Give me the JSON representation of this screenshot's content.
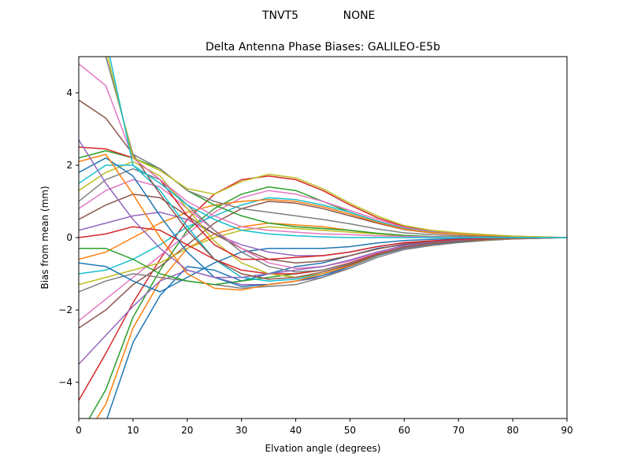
{
  "chart_data": {
    "type": "line",
    "suptitle_left": "TNVT5",
    "suptitle_right": "NONE",
    "title": "Delta Antenna Phase Biases: GALILEO-E5b",
    "xlabel": "Elvation angle (degrees)",
    "ylabel": "Bias from mean (mm)",
    "xlim": [
      0,
      90
    ],
    "ylim": [
      -5,
      5
    ],
    "xticks": [
      0,
      10,
      20,
      30,
      40,
      50,
      60,
      70,
      80,
      90
    ],
    "yticks": [
      -4,
      -2,
      0,
      2,
      4
    ],
    "grid": false,
    "legend": "none",
    "x": [
      0,
      5,
      10,
      15,
      20,
      25,
      30,
      35,
      40,
      45,
      50,
      55,
      60,
      65,
      70,
      75,
      80,
      85,
      90
    ],
    "palette": [
      "#1f77b4",
      "#ff7f0e",
      "#2ca02c",
      "#d62728",
      "#9467bd",
      "#8c564b",
      "#e377c2",
      "#7f7f7f",
      "#bcbd22",
      "#17becf"
    ],
    "series": [
      {
        "values": [
          -6.2,
          -5.1,
          -2.9,
          -1.6,
          -0.8,
          -0.9,
          -1.2,
          -1.0,
          -0.8,
          -0.7,
          -0.5,
          -0.3,
          -0.2,
          -0.15,
          -0.1,
          -0.06,
          -0.03,
          -0.01,
          0
        ]
      },
      {
        "values": [
          -5.8,
          -4.6,
          -2.5,
          -1.2,
          -0.3,
          0.1,
          0.3,
          0.4,
          0.35,
          0.3,
          0.2,
          0.1,
          0.05,
          0.02,
          0.01,
          0.0,
          0.0,
          0.0,
          0
        ]
      },
      {
        "values": [
          -5.5,
          -4.2,
          -2.2,
          -0.9,
          0.2,
          0.8,
          1.2,
          1.4,
          1.3,
          1.0,
          0.7,
          0.45,
          0.25,
          0.15,
          0.1,
          0.06,
          0.03,
          0.01,
          0
        ]
      },
      {
        "values": [
          -4.5,
          -3.2,
          -1.8,
          -0.6,
          0.5,
          1.2,
          1.6,
          1.7,
          1.6,
          1.3,
          0.9,
          0.55,
          0.3,
          0.18,
          0.12,
          0.08,
          0.04,
          0.02,
          0
        ]
      },
      {
        "values": [
          -3.5,
          -2.7,
          -1.9,
          -1.2,
          -0.9,
          -1.1,
          -1.3,
          -1.3,
          -1.2,
          -1.1,
          -0.8,
          -0.5,
          -0.3,
          -0.2,
          -0.12,
          -0.07,
          -0.04,
          -0.02,
          0
        ]
      },
      {
        "values": [
          -2.5,
          -2.0,
          -1.3,
          -0.8,
          -0.2,
          0.4,
          0.8,
          1.0,
          0.95,
          0.8,
          0.6,
          0.4,
          0.22,
          0.13,
          0.09,
          0.05,
          0.03,
          0.01,
          0
        ]
      },
      {
        "values": [
          -2.3,
          -1.7,
          -1.1,
          -0.5,
          0.1,
          0.7,
          1.1,
          1.3,
          1.2,
          1.0,
          0.75,
          0.5,
          0.28,
          0.17,
          0.11,
          0.06,
          0.03,
          0.01,
          0
        ]
      },
      {
        "values": [
          -1.5,
          -1.2,
          -1.0,
          -1.1,
          -1.2,
          -1.3,
          -1.4,
          -1.35,
          -1.3,
          -1.1,
          -0.85,
          -0.55,
          -0.33,
          -0.22,
          -0.14,
          -0.08,
          -0.04,
          -0.02,
          0
        ]
      },
      {
        "values": [
          -1.3,
          -1.1,
          -0.9,
          -0.7,
          -0.3,
          0.0,
          0.2,
          0.3,
          0.25,
          0.2,
          0.15,
          0.1,
          0.05,
          0.02,
          0.01,
          0.0,
          0.0,
          0.0,
          0
        ]
      },
      {
        "values": [
          -1.0,
          -0.9,
          -0.6,
          -0.2,
          0.3,
          0.6,
          0.9,
          1.1,
          1.05,
          0.9,
          0.7,
          0.45,
          0.25,
          0.15,
          0.09,
          0.05,
          0.02,
          0.01,
          0
        ]
      },
      {
        "values": [
          -0.7,
          -0.8,
          -1.2,
          -1.5,
          -1.1,
          -0.7,
          -0.4,
          -0.3,
          -0.3,
          -0.3,
          -0.25,
          -0.15,
          -0.08,
          -0.05,
          -0.03,
          -0.02,
          -0.01,
          0.0,
          0
        ]
      },
      {
        "values": [
          -0.6,
          -0.4,
          0.0,
          0.4,
          0.7,
          0.9,
          1.0,
          1.05,
          1.0,
          0.85,
          0.65,
          0.42,
          0.23,
          0.14,
          0.09,
          0.05,
          0.02,
          0.01,
          0
        ]
      },
      {
        "values": [
          -0.3,
          -0.3,
          -0.6,
          -1.0,
          -1.2,
          -1.3,
          -1.2,
          -1.1,
          -1.0,
          -0.9,
          -0.7,
          -0.45,
          -0.27,
          -0.18,
          -0.11,
          -0.06,
          -0.03,
          -0.01,
          0
        ]
      },
      {
        "values": [
          0.0,
          0.1,
          0.3,
          0.2,
          -0.2,
          -0.6,
          -0.9,
          -1.0,
          -1.0,
          -0.9,
          -0.7,
          -0.45,
          -0.27,
          -0.18,
          -0.11,
          -0.06,
          -0.03,
          -0.01,
          0
        ]
      },
      {
        "values": [
          0.2,
          0.4,
          0.6,
          0.7,
          0.5,
          0.1,
          -0.2,
          -0.4,
          -0.5,
          -0.5,
          -0.4,
          -0.25,
          -0.15,
          -0.1,
          -0.06,
          -0.04,
          -0.02,
          -0.01,
          0
        ]
      },
      {
        "values": [
          0.5,
          0.9,
          1.2,
          1.1,
          0.6,
          0.1,
          -0.3,
          -0.6,
          -0.7,
          -0.65,
          -0.5,
          -0.32,
          -0.18,
          -0.12,
          -0.07,
          -0.04,
          -0.02,
          -0.01,
          0
        ]
      },
      {
        "values": [
          0.8,
          1.3,
          1.6,
          1.4,
          0.8,
          0.2,
          -0.3,
          -0.7,
          -0.85,
          -0.8,
          -0.65,
          -0.42,
          -0.24,
          -0.15,
          -0.09,
          -0.05,
          -0.02,
          -0.01,
          0
        ]
      },
      {
        "values": [
          1.0,
          1.6,
          1.9,
          1.6,
          0.9,
          0.2,
          -0.4,
          -0.8,
          -0.95,
          -0.9,
          -0.72,
          -0.47,
          -0.27,
          -0.17,
          -0.1,
          -0.06,
          -0.03,
          -0.01,
          0
        ]
      },
      {
        "values": [
          1.3,
          1.8,
          2.1,
          1.7,
          0.8,
          -0.1,
          -0.7,
          -1.0,
          -1.1,
          -1.0,
          -0.78,
          -0.5,
          -0.28,
          -0.18,
          -0.11,
          -0.06,
          -0.03,
          -0.01,
          0
        ]
      },
      {
        "values": [
          1.5,
          2.0,
          2.0,
          1.3,
          0.3,
          -0.6,
          -1.1,
          -1.2,
          -1.15,
          -1.0,
          -0.8,
          -0.5,
          -0.28,
          -0.18,
          -0.11,
          -0.06,
          -0.03,
          -0.01,
          0
        ]
      },
      {
        "values": [
          1.8,
          2.2,
          1.7,
          0.6,
          -0.4,
          -1.1,
          -1.35,
          -1.3,
          -1.2,
          -1.05,
          -0.8,
          -0.5,
          -0.28,
          -0.18,
          -0.11,
          -0.06,
          -0.03,
          -0.01,
          0
        ]
      },
      {
        "values": [
          2.1,
          2.3,
          1.2,
          0.0,
          -1.0,
          -1.4,
          -1.45,
          -1.3,
          -1.2,
          -1.0,
          -0.78,
          -0.48,
          -0.27,
          -0.17,
          -0.1,
          -0.06,
          -0.03,
          -0.01,
          0
        ]
      },
      {
        "values": [
          2.2,
          2.4,
          2.2,
          1.9,
          1.3,
          0.9,
          0.6,
          0.4,
          0.3,
          0.25,
          0.2,
          0.12,
          0.06,
          0.03,
          0.02,
          0.01,
          0.0,
          0.0,
          0
        ]
      },
      {
        "values": [
          2.5,
          2.45,
          2.2,
          1.6,
          0.6,
          -0.2,
          -0.6,
          -0.6,
          -0.55,
          -0.5,
          -0.4,
          -0.25,
          -0.14,
          -0.09,
          -0.05,
          -0.03,
          -0.01,
          0.0,
          0
        ]
      },
      {
        "values": [
          2.7,
          1.5,
          0.5,
          -0.3,
          -0.9,
          -1.1,
          -1.1,
          -1.0,
          -0.9,
          -0.8,
          -0.62,
          -0.4,
          -0.22,
          -0.14,
          -0.08,
          -0.05,
          -0.02,
          -0.01,
          0
        ]
      },
      {
        "values": [
          3.8,
          3.3,
          2.3,
          1.2,
          0.2,
          -0.6,
          -1.0,
          -1.15,
          -1.1,
          -0.95,
          -0.75,
          -0.47,
          -0.26,
          -0.16,
          -0.1,
          -0.05,
          -0.02,
          -0.01,
          0
        ]
      },
      {
        "values": [
          4.8,
          4.2,
          2.2,
          1.6,
          1.0,
          0.6,
          0.3,
          0.2,
          0.15,
          0.1,
          0.08,
          0.05,
          0.03,
          0.02,
          0.01,
          0.0,
          0.0,
          0.0,
          0
        ]
      },
      {
        "values": [
          5.5,
          5.0,
          2.3,
          1.9,
          1.3,
          1.0,
          0.8,
          0.7,
          0.6,
          0.5,
          0.38,
          0.24,
          0.13,
          0.08,
          0.05,
          0.03,
          0.01,
          0.0,
          0
        ]
      },
      {
        "values": [
          6.0,
          5.2,
          2.2,
          1.85,
          1.35,
          1.2,
          1.55,
          1.75,
          1.65,
          1.35,
          0.95,
          0.6,
          0.33,
          0.2,
          0.13,
          0.08,
          0.04,
          0.02,
          0
        ]
      },
      {
        "values": [
          6.5,
          5.5,
          2.0,
          1.5,
          0.9,
          0.5,
          0.2,
          0.1,
          0.05,
          0.02,
          0.0,
          0.0,
          0.0,
          0.0,
          0.0,
          0.0,
          0.0,
          0.0,
          0
        ]
      }
    ]
  }
}
